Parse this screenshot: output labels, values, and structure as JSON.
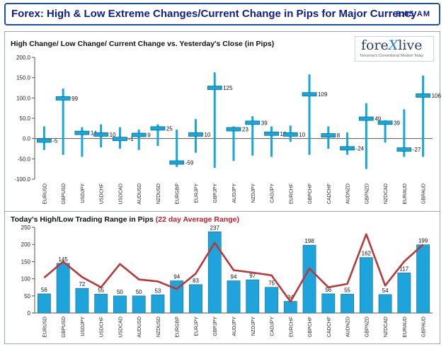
{
  "header": {
    "title": "Forex:  High & Low Extreme Changes/Current Change in Pips for Major Currency",
    "time": "8:05 AM"
  },
  "logo": {
    "brand_before": "fore",
    "brand_x": "X",
    "brand_after": "live",
    "tagline": "Tomorrow's Conventional Wisdom Today"
  },
  "chart_data": [
    {
      "type": "stock-range",
      "title": "High Change/ Low Change/ Current Change vs. Yesterday's Close (in Pips)",
      "categories": [
        "EURUSD",
        "GBPUSD",
        "USDJPY",
        "USDCHF",
        "USDCAD",
        "AUDUSD",
        "NZDUSD",
        "EURGBP",
        "EURJPY",
        "GBPJPY",
        "AUDJPY",
        "NZDJPY",
        "CADJPY",
        "EURCHF",
        "GBPCHF",
        "CADCHF",
        "AUDNZD",
        "GBPNZD",
        "NZDCAD",
        "EURAUD",
        "GBPAUD"
      ],
      "high": [
        30,
        123,
        28,
        35,
        28,
        22,
        35,
        22,
        48,
        163,
        30,
        55,
        30,
        32,
        158,
        30,
        15,
        87,
        45,
        72,
        155
      ],
      "low": [
        -28,
        -40,
        -45,
        -22,
        -25,
        -28,
        -18,
        -70,
        -35,
        -72,
        -55,
        -42,
        -45,
        -8,
        -40,
        -25,
        -40,
        -75,
        -10,
        -45,
        -45
      ],
      "current": [
        -5,
        99,
        14,
        10,
        -1,
        9,
        25,
        -59,
        10,
        125,
        23,
        39,
        12,
        10,
        109,
        8,
        -24,
        49,
        39,
        -27,
        106
      ],
      "labels": [
        "-5",
        "99",
        "14",
        "10",
        "-1",
        "9",
        "25",
        "-59",
        "10",
        "125",
        "23",
        "39",
        "12",
        "10",
        "109",
        "8",
        "-24",
        "49",
        "39",
        "-27",
        "106"
      ],
      "yticks": [
        "200.0",
        "150.0",
        "100.0",
        "50.0",
        "0.0",
        "-50.0",
        "-100.0"
      ],
      "ylim": [
        -100,
        200
      ]
    },
    {
      "type": "bar+line",
      "title": "Today's High/Low Trading Range in Pips",
      "title_highlight": "(22 day Average Range)",
      "categories": [
        "EURUSD",
        "GBPUSD",
        "USDJPY",
        "USDCHF",
        "USDCAD",
        "AUDUSD",
        "NZDUSD",
        "EURGBP",
        "EURJPY",
        "GBPJPY",
        "AUDJPY",
        "NZDJPY",
        "CADJPY",
        "EURCHF",
        "GBPCHF",
        "CADCHF",
        "AUDNZD",
        "GBPNZD",
        "NZDCAD",
        "EURAUD",
        "GBPAUD"
      ],
      "values": [
        56,
        145,
        72,
        55,
        50,
        50,
        53,
        94,
        83,
        237,
        94,
        97,
        75,
        34,
        198,
        56,
        55,
        162,
        54,
        117,
        199
      ],
      "labels": [
        "56",
        "145",
        "72",
        "55",
        "50",
        "50",
        "53",
        "94",
        "83",
        "237",
        "94",
        "97",
        "75",
        "34",
        "198",
        "56",
        "55",
        "162",
        "54",
        "117",
        "199"
      ],
      "average": [
        103,
        150,
        105,
        75,
        143,
        98,
        92,
        70,
        115,
        205,
        125,
        118,
        110,
        33,
        130,
        75,
        85,
        230,
        80,
        150,
        200
      ],
      "yticks": [
        "250",
        "200",
        "150",
        "100",
        "50",
        "0"
      ],
      "ylim": [
        0,
        250
      ]
    }
  ]
}
